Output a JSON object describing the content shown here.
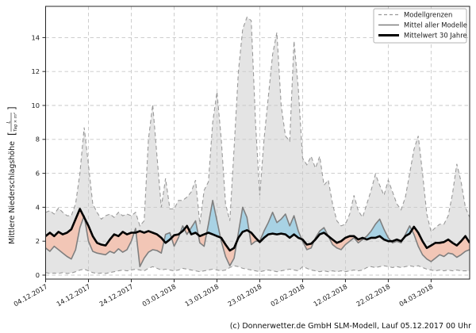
{
  "chart_data": {
    "type": "area",
    "title": "",
    "ylabel": {
      "text": "Mittlere Niederschlagshöhe",
      "unit_numerator": "L",
      "unit_denominator": "Tag × m²"
    },
    "caption": "(c) Donnerwetter.de GmbH SLM-Modell, Lauf 05.12.2017 00 Uhr",
    "x_tick_labels": [
      "04.12.2017",
      "14.12.2017",
      "24.12.2017",
      "03.01.2018",
      "13.01.2018",
      "23.01.2018",
      "02.02.2018",
      "12.02.2018",
      "22.02.2018",
      "04.03.2018"
    ],
    "x_tick_day_indices": [
      0,
      10,
      20,
      30,
      40,
      50,
      60,
      70,
      80,
      90
    ],
    "y_ticks": [
      0,
      2,
      4,
      6,
      8,
      10,
      12,
      14
    ],
    "ylim": [
      0,
      15.8
    ],
    "n_days": 100,
    "grid": true,
    "legend": {
      "position": "top-right",
      "entries": [
        {
          "label": "Modellgrenzen",
          "style": "dashed"
        },
        {
          "label": "Mittel aller Modelle",
          "style": "solid"
        },
        {
          "label": "Mittelwert 30 Jahre",
          "style": "thick"
        }
      ]
    },
    "colors": {
      "band_fill": "#e4e4e4",
      "bound_line": "#999999",
      "grid_line": "#c8c8c8",
      "model_mean_line": "#7f7f7f",
      "mean30_line": "#000000",
      "above_fill": "#a8d2e4",
      "below_fill": "#f2c6b6",
      "spine": "#262626",
      "text": "#1a1a1a"
    },
    "series": [
      {
        "name": "Modellgrenzen Obergrenze",
        "role": "upper_bound",
        "values": [
          3.7,
          3.8,
          3.6,
          3.95,
          3.7,
          3.5,
          3.5,
          4.2,
          6.0,
          8.7,
          6.5,
          4.2,
          3.7,
          3.3,
          3.5,
          3.6,
          3.4,
          3.7,
          3.5,
          3.6,
          3.5,
          3.7,
          2.9,
          3.2,
          8.0,
          10.05,
          7.0,
          4.0,
          5.7,
          3.9,
          3.9,
          4.4,
          4.4,
          4.6,
          4.9,
          5.6,
          3.0,
          5.0,
          5.5,
          9.0,
          10.8,
          8.0,
          4.2,
          3.2,
          7.5,
          12.0,
          14.5,
          15.2,
          15.0,
          9.0,
          4.7,
          8.0,
          10.5,
          13.0,
          14.3,
          10.0,
          8.2,
          7.9,
          13.8,
          11.0,
          6.9,
          6.5,
          7.0,
          6.3,
          7.0,
          5.3,
          5.6,
          4.2,
          3.2,
          2.9,
          3.0,
          3.6,
          4.7,
          3.8,
          3.4,
          4.2,
          5.0,
          5.95,
          5.3,
          4.7,
          5.6,
          4.9,
          4.2,
          3.85,
          4.6,
          6.0,
          7.4,
          8.2,
          6.0,
          3.6,
          2.55,
          2.8,
          3.0,
          3.0,
          3.5,
          4.8,
          6.55,
          5.5,
          4.0,
          3.4
        ]
      },
      {
        "name": "Modellgrenzen Untergrenze",
        "role": "lower_bound",
        "values": [
          0.15,
          0.1,
          0.12,
          0.1,
          0.15,
          0.1,
          0.12,
          0.2,
          0.3,
          0.35,
          0.25,
          0.15,
          0.1,
          0.12,
          0.1,
          0.15,
          0.2,
          0.25,
          0.3,
          0.25,
          0.3,
          0.35,
          0.3,
          0.25,
          0.4,
          0.5,
          0.4,
          0.3,
          0.35,
          0.3,
          0.25,
          0.3,
          0.4,
          0.35,
          0.3,
          0.25,
          0.2,
          0.25,
          0.3,
          0.35,
          0.3,
          0.25,
          0.3,
          0.45,
          0.55,
          0.5,
          0.4,
          0.35,
          0.3,
          0.25,
          0.2,
          0.25,
          0.3,
          0.25,
          0.2,
          0.25,
          0.3,
          0.35,
          0.3,
          0.25,
          0.5,
          0.4,
          0.3,
          0.25,
          0.2,
          0.25,
          0.2,
          0.25,
          0.2,
          0.25,
          0.2,
          0.25,
          0.3,
          0.25,
          0.3,
          0.45,
          0.5,
          0.45,
          0.5,
          0.55,
          0.5,
          0.45,
          0.5,
          0.45,
          0.5,
          0.55,
          0.5,
          0.55,
          0.45,
          0.35,
          0.3,
          0.25,
          0.3,
          0.25,
          0.3,
          0.25,
          0.3,
          0.25,
          0.25,
          0.25
        ]
      },
      {
        "name": "Mittel aller Modelle",
        "role": "model_mean",
        "values": [
          1.6,
          1.4,
          1.7,
          1.5,
          1.3,
          1.1,
          0.95,
          1.5,
          2.8,
          3.5,
          2.0,
          1.4,
          1.3,
          1.25,
          1.2,
          1.4,
          1.3,
          1.55,
          1.35,
          1.5,
          2.0,
          2.75,
          0.5,
          1.0,
          1.35,
          1.5,
          1.45,
          1.3,
          2.4,
          2.5,
          1.7,
          2.2,
          2.9,
          2.4,
          2.8,
          3.2,
          1.9,
          1.7,
          3.0,
          4.4,
          3.2,
          2.0,
          1.1,
          0.55,
          1.0,
          2.5,
          4.0,
          3.4,
          1.8,
          2.0,
          2.0,
          2.6,
          3.1,
          3.7,
          3.1,
          3.3,
          3.6,
          2.9,
          3.5,
          2.6,
          2.0,
          1.5,
          1.6,
          2.2,
          2.6,
          2.8,
          2.3,
          1.8,
          1.6,
          1.5,
          1.8,
          2.0,
          2.2,
          1.9,
          2.1,
          2.3,
          2.6,
          3.0,
          3.3,
          2.7,
          2.2,
          1.9,
          2.0,
          1.9,
          2.4,
          2.9,
          2.4,
          1.7,
          1.2,
          0.95,
          0.8,
          1.0,
          1.2,
          1.1,
          1.3,
          1.25,
          1.05,
          1.2,
          1.4,
          1.5
        ]
      },
      {
        "name": "Mittelwert 30 Jahre",
        "role": "mean_30y",
        "values": [
          2.3,
          2.5,
          2.3,
          2.55,
          2.4,
          2.5,
          2.7,
          3.3,
          3.9,
          3.4,
          2.9,
          2.3,
          1.9,
          1.8,
          1.75,
          2.1,
          2.4,
          2.3,
          2.55,
          2.4,
          2.5,
          2.5,
          2.6,
          2.5,
          2.6,
          2.5,
          2.4,
          2.2,
          1.9,
          2.1,
          2.35,
          2.4,
          2.6,
          2.9,
          2.4,
          2.5,
          2.3,
          2.4,
          2.5,
          2.4,
          2.3,
          2.2,
          1.8,
          1.45,
          1.6,
          2.2,
          2.55,
          2.65,
          2.5,
          2.2,
          1.95,
          2.2,
          2.4,
          2.45,
          2.4,
          2.45,
          2.4,
          2.2,
          2.4,
          2.2,
          2.1,
          1.8,
          1.85,
          2.1,
          2.4,
          2.5,
          2.3,
          2.1,
          1.9,
          2.0,
          2.2,
          2.3,
          2.3,
          2.1,
          2.2,
          2.1,
          2.2,
          2.2,
          2.3,
          2.1,
          2.0,
          2.0,
          2.1,
          2.0,
          2.3,
          2.45,
          2.85,
          2.5,
          2.0,
          1.6,
          1.75,
          1.9,
          1.9,
          1.95,
          2.1,
          1.9,
          1.75,
          2.0,
          2.3,
          1.9
        ]
      }
    ]
  }
}
